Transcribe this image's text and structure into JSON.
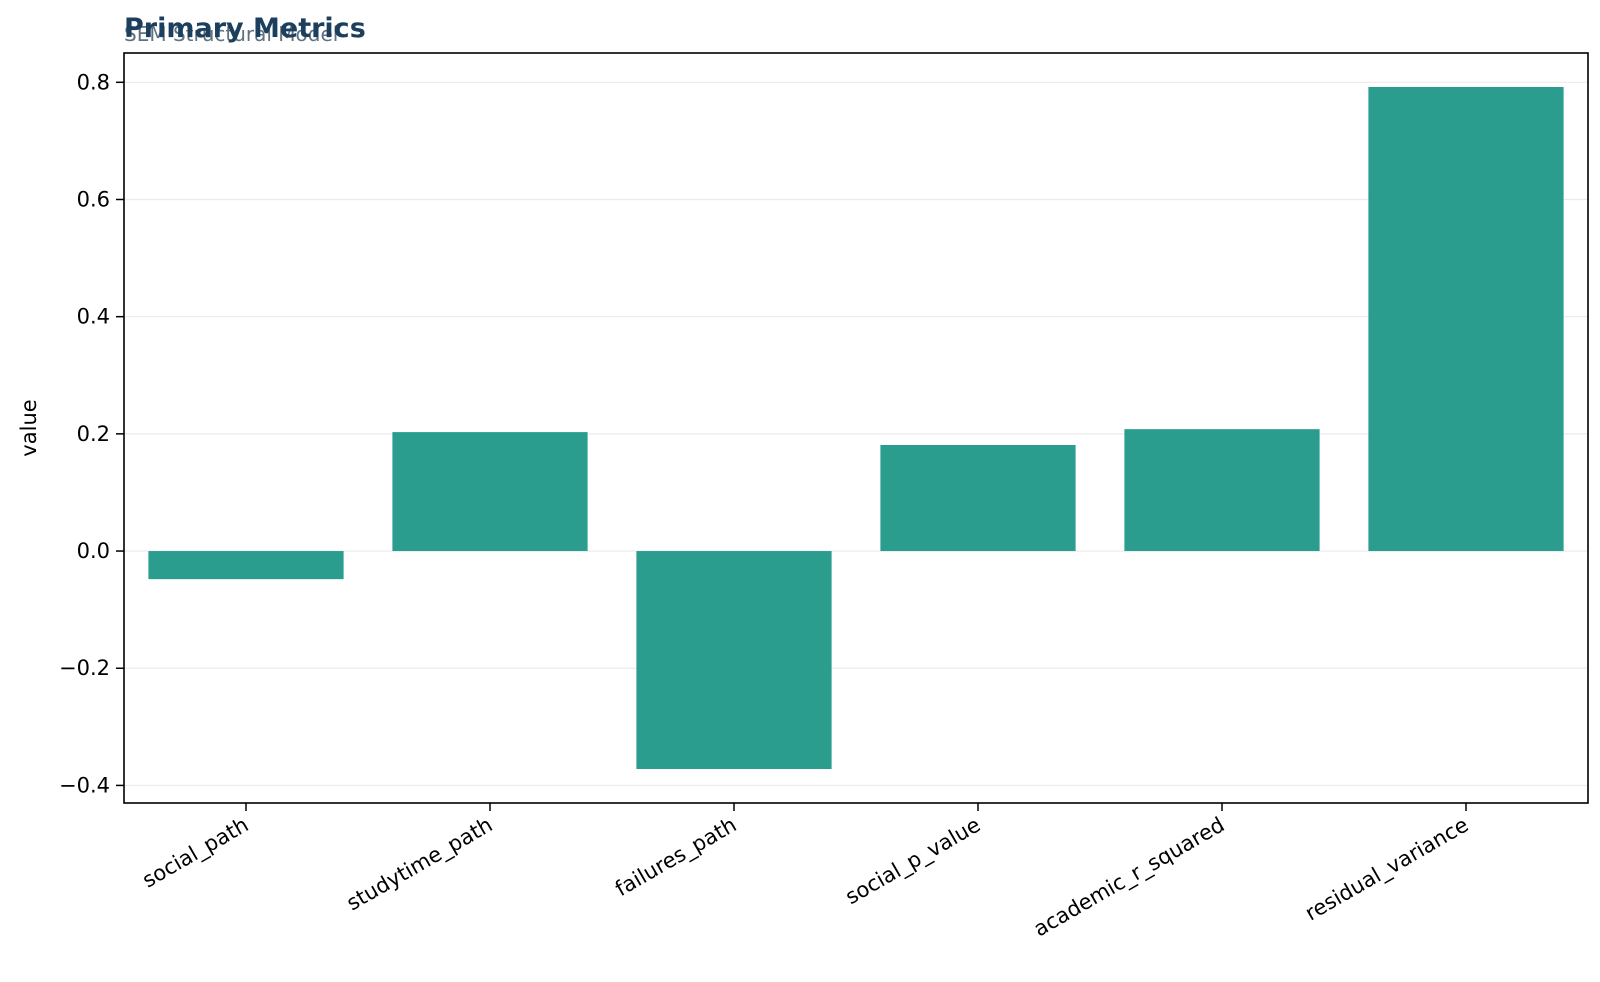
{
  "chart_data": {
    "type": "bar",
    "title": "Primary Metrics",
    "subtitle": "SEM Structural Model",
    "xlabel": "",
    "ylabel": "value",
    "categories": [
      "social_path",
      "studytime_path",
      "failures_path",
      "social_p_value",
      "academic_r_squared",
      "residual_variance"
    ],
    "values": [
      -0.048,
      0.203,
      -0.372,
      0.181,
      0.208,
      0.792
    ],
    "ylim": [
      -0.43,
      0.85
    ],
    "yticks": [
      -0.4,
      -0.2,
      0.0,
      0.2,
      0.4,
      0.6,
      0.8
    ],
    "ytick_labels": [
      "−0.4",
      "−0.2",
      "0.0",
      "0.2",
      "0.4",
      "0.6",
      "0.8"
    ],
    "grid": true,
    "colors": {
      "bar": "#2a9d8f",
      "title": "#1d3f5e",
      "subtitle": "#5f7282",
      "grid": "#ebebeb",
      "axis": "#000000"
    }
  }
}
